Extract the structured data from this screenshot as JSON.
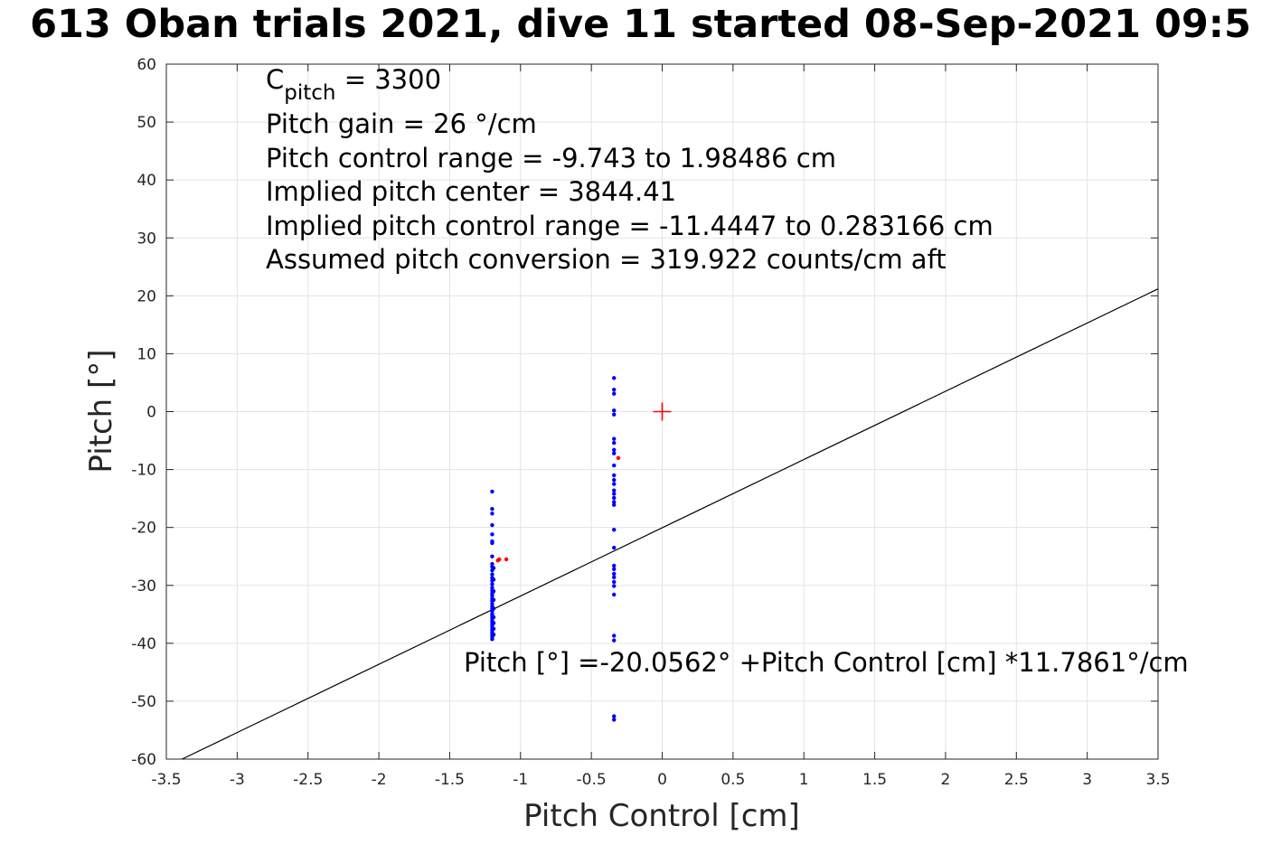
{
  "chart_data": {
    "type": "scatter",
    "title": "613 Oban trials 2021, dive 11 started 08-Sep-2021 09:5",
    "xlabel": "Pitch Control [cm]",
    "ylabel": "Pitch [°]",
    "xlim": [
      -3.5,
      3.5
    ],
    "ylim": [
      -60,
      60
    ],
    "xticks": [
      "-3.5",
      "-3",
      "-2.5",
      "-2",
      "-1.5",
      "-1",
      "-0.5",
      "0",
      "0.5",
      "1",
      "1.5",
      "2",
      "2.5",
      "3",
      "3.5"
    ],
    "yticks": [
      "60",
      "50",
      "40",
      "30",
      "20",
      "10",
      "0",
      "-10",
      "-20",
      "-30",
      "-40",
      "-50",
      "-60"
    ],
    "grid": true,
    "annotations": {
      "cpitch_symbol": "C",
      "cpitch_subscript": "pitch",
      "cpitch_value": " = 3300",
      "pitch_gain": "Pitch gain = 26 °/cm",
      "control_range": "Pitch control range = -9.743 to 1.98486 cm",
      "implied_center": "Implied pitch center = 3844.41",
      "implied_range": "Implied pitch control range = -11.4447 to 0.283166 cm",
      "conversion": "Assumed pitch conversion = 319.922 counts/cm aft",
      "fit_equation": "Pitch [°] =-20.0562° +Pitch Control [cm] *11.7861°/cm"
    },
    "fit_line": {
      "intercept": -20.0562,
      "slope": 11.7861,
      "color": "#000000"
    },
    "center_marker": {
      "x": 0,
      "y": 0,
      "color": "#ff0000"
    },
    "series": [
      {
        "color": "#0000ff",
        "points": [
          [
            -1.2,
            -13.8
          ],
          [
            -1.2,
            -16.8
          ],
          [
            -1.2,
            -17.6
          ],
          [
            -1.2,
            -19.6
          ],
          [
            -1.2,
            -21.2
          ],
          [
            -1.2,
            -22.4
          ],
          [
            -1.2,
            -22.7
          ],
          [
            -1.2,
            -25.0
          ],
          [
            -1.2,
            -26.3
          ],
          [
            -1.2,
            -26.8
          ],
          [
            -1.2,
            -27.4
          ],
          [
            -1.2,
            -28.1
          ],
          [
            -1.2,
            -28.7
          ],
          [
            -1.2,
            -29.2
          ],
          [
            -1.2,
            -29.8
          ],
          [
            -1.2,
            -30.4
          ],
          [
            -1.2,
            -30.9
          ],
          [
            -1.2,
            -31.4
          ],
          [
            -1.2,
            -31.8
          ],
          [
            -1.2,
            -32.3
          ],
          [
            -1.2,
            -32.7
          ],
          [
            -1.2,
            -33.2
          ],
          [
            -1.2,
            -33.6
          ],
          [
            -1.2,
            -34.0
          ],
          [
            -1.2,
            -34.4
          ],
          [
            -1.2,
            -34.9
          ],
          [
            -1.2,
            -35.3
          ],
          [
            -1.2,
            -35.7
          ],
          [
            -1.2,
            -36.1
          ],
          [
            -1.2,
            -36.5
          ],
          [
            -1.2,
            -36.9
          ],
          [
            -1.2,
            -37.3
          ],
          [
            -1.2,
            -37.7
          ],
          [
            -1.2,
            -38.1
          ],
          [
            -1.2,
            -38.5
          ],
          [
            -1.2,
            -38.9
          ],
          [
            -1.2,
            -39.3
          ],
          [
            -1.19,
            -27.0
          ],
          [
            -1.19,
            -29.0
          ],
          [
            -1.19,
            -31.0
          ],
          [
            -1.19,
            -32.5
          ],
          [
            -1.19,
            -34.0
          ],
          [
            -1.19,
            -35.5
          ],
          [
            -1.19,
            -36.5
          ],
          [
            -1.19,
            -37.5
          ],
          [
            -1.19,
            -38.5
          ],
          [
            -0.34,
            5.8
          ],
          [
            -0.34,
            3.8
          ],
          [
            -0.34,
            3.1
          ],
          [
            -0.34,
            0.2
          ],
          [
            -0.34,
            -0.5
          ],
          [
            -0.34,
            -4.7
          ],
          [
            -0.34,
            -5.4
          ],
          [
            -0.34,
            -6.6
          ],
          [
            -0.34,
            -7.2
          ],
          [
            -0.34,
            -9.3
          ],
          [
            -0.34,
            -11.0
          ],
          [
            -0.34,
            -11.8
          ],
          [
            -0.34,
            -12.5
          ],
          [
            -0.34,
            -13.6
          ],
          [
            -0.34,
            -14.2
          ],
          [
            -0.34,
            -14.9
          ],
          [
            -0.34,
            -15.6
          ],
          [
            -0.34,
            -16.1
          ],
          [
            -0.34,
            -20.4
          ],
          [
            -0.34,
            -23.5
          ],
          [
            -0.34,
            -26.6
          ],
          [
            -0.34,
            -27.2
          ],
          [
            -0.34,
            -28.0
          ],
          [
            -0.34,
            -28.6
          ],
          [
            -0.34,
            -29.4
          ],
          [
            -0.34,
            -30.1
          ],
          [
            -0.34,
            -31.6
          ],
          [
            -0.34,
            -38.7
          ],
          [
            -0.34,
            -39.5
          ],
          [
            -0.34,
            -52.6
          ],
          [
            -0.34,
            -53.2
          ]
        ]
      },
      {
        "color": "#ff0000",
        "points": [
          [
            -1.15,
            -25.5
          ],
          [
            -1.16,
            -25.7
          ],
          [
            -1.1,
            -25.5
          ],
          [
            -0.31,
            -8.0
          ]
        ]
      }
    ]
  }
}
